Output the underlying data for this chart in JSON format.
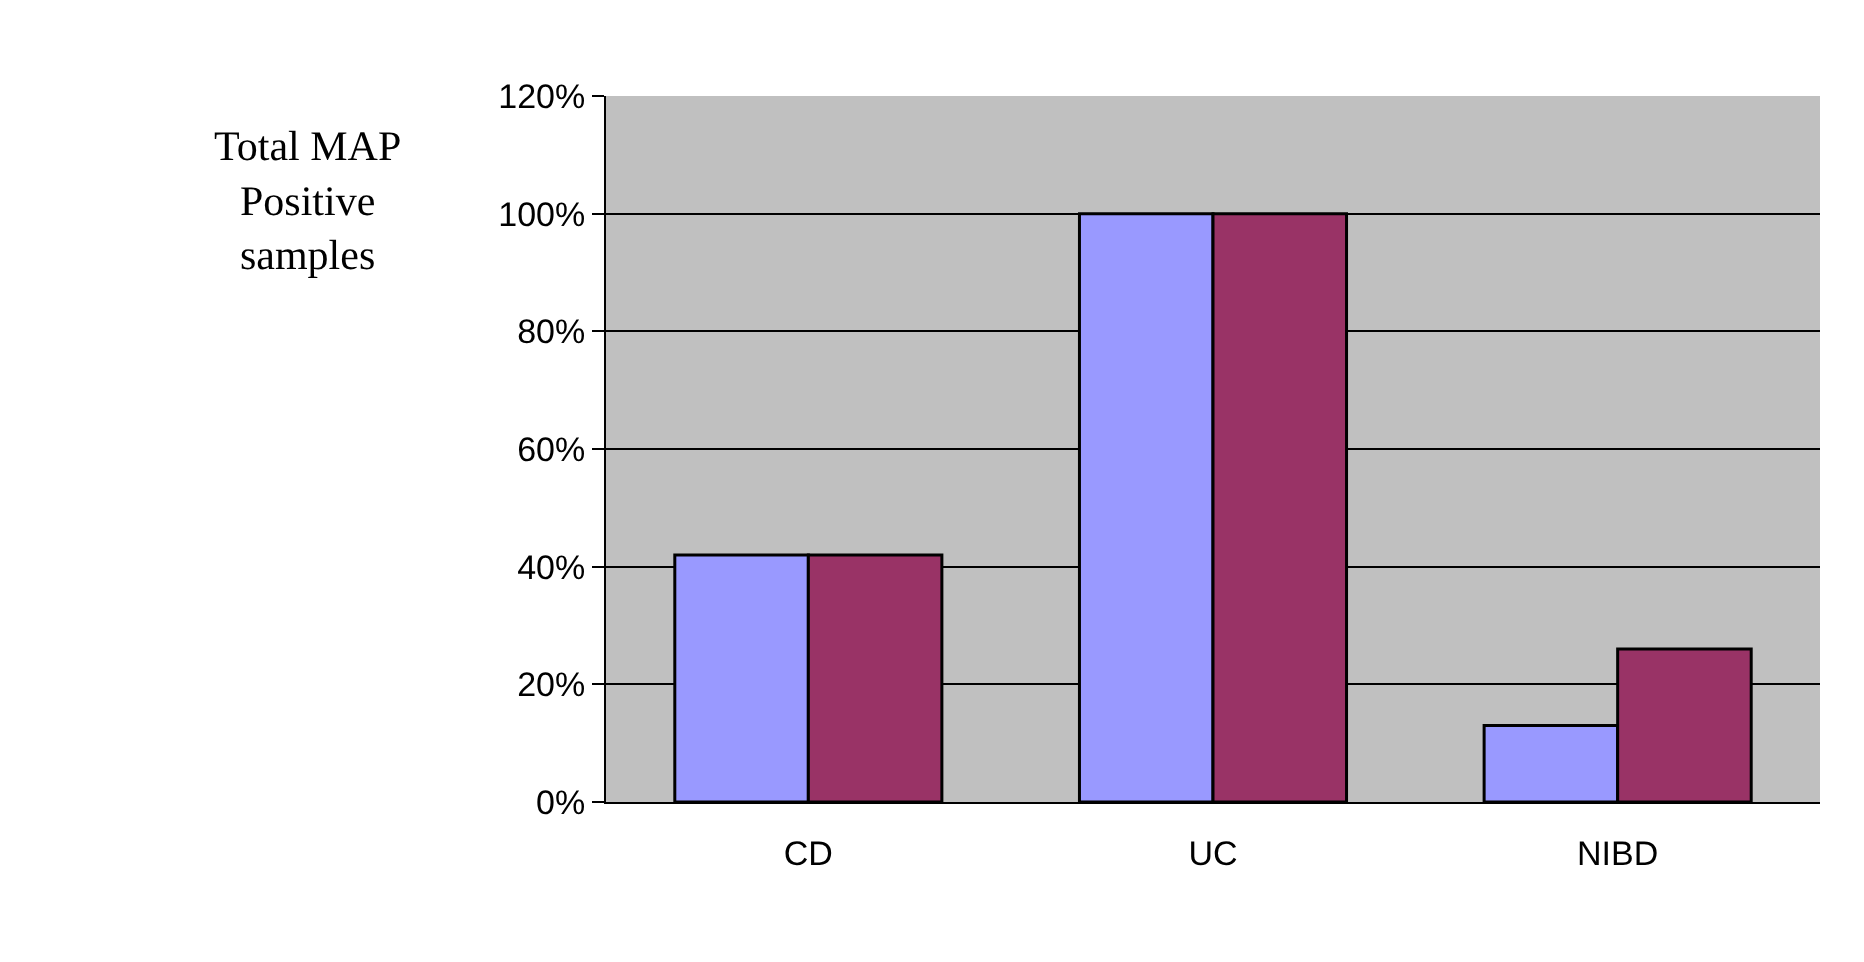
{
  "chart_data": {
    "type": "bar",
    "ylabel": "Total MAP Positive samples",
    "categories": [
      "CD",
      "UC",
      "NIBD"
    ],
    "series": [
      {
        "color": "#9999ff",
        "values": [
          42,
          100,
          13
        ]
      },
      {
        "color": "#993366",
        "values": [
          42,
          100,
          26
        ]
      }
    ],
    "ylim": [
      0,
      120
    ],
    "yticks": [
      {
        "value": 0,
        "label": "0%"
      },
      {
        "value": 20,
        "label": "20%"
      },
      {
        "value": 40,
        "label": "40%"
      },
      {
        "value": 60,
        "label": "60%"
      },
      {
        "value": 80,
        "label": "80%"
      },
      {
        "value": 100,
        "label": "100%"
      },
      {
        "value": 120,
        "label": "120%"
      }
    ],
    "grid": "y"
  }
}
